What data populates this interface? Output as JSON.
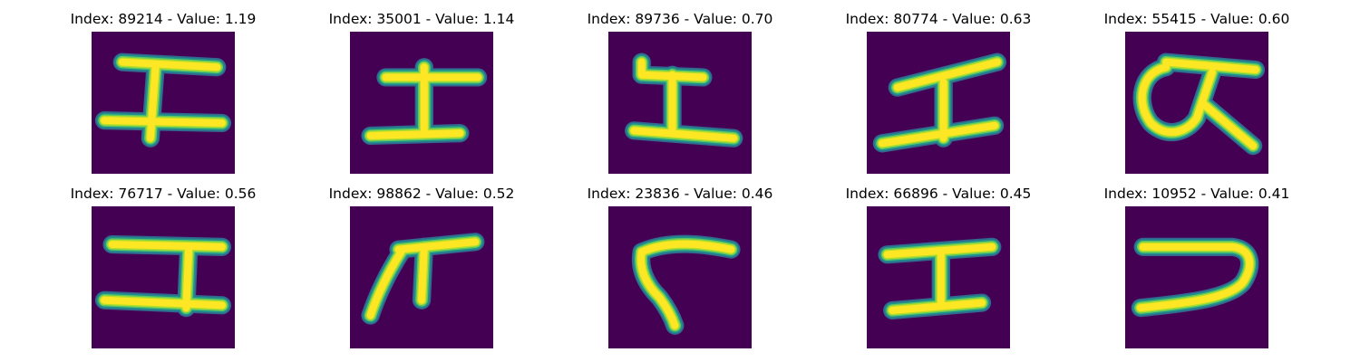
{
  "figure": {
    "background": "#ffffff",
    "image_background": "#440154",
    "stroke_edge_colors": [
      "#31688e",
      "#21918c",
      "#5ec962",
      "#b5de2b"
    ],
    "stroke_core_color": "#fde725"
  },
  "panels": [
    {
      "title": "Index: 89214 - Value: 1.19",
      "index": 89214,
      "value": 1.19,
      "glyph": "stroke-I-shape"
    },
    {
      "title": "Index: 35001 - Value: 1.14",
      "index": 35001,
      "value": 1.14,
      "glyph": "stroke-I-shape"
    },
    {
      "title": "Index: 89736 - Value: 0.70",
      "index": 89736,
      "value": 0.7,
      "glyph": "stroke-I-shape-open"
    },
    {
      "title": "Index: 80774 - Value: 0.63",
      "index": 80774,
      "value": 0.63,
      "glyph": "stroke-I-shape-slanted"
    },
    {
      "title": "Index: 55415 - Value: 0.60",
      "index": 55415,
      "value": 0.6,
      "glyph": "stroke-loop-shape"
    },
    {
      "title": "Index: 76717 - Value: 0.56",
      "index": 76717,
      "value": 0.56,
      "glyph": "stroke-I-shape"
    },
    {
      "title": "Index: 98862 - Value: 0.52",
      "index": 98862,
      "value": 0.52,
      "glyph": "stroke-pi-shape"
    },
    {
      "title": "Index: 23836 - Value: 0.46",
      "index": 23836,
      "value": 0.46,
      "glyph": "stroke-bent-shape"
    },
    {
      "title": "Index: 66896 - Value: 0.45",
      "index": 66896,
      "value": 0.45,
      "glyph": "stroke-I-shape"
    },
    {
      "title": "Index: 10952 - Value: 0.41",
      "index": 10952,
      "value": 0.41,
      "glyph": "stroke-hook-shape"
    }
  ]
}
